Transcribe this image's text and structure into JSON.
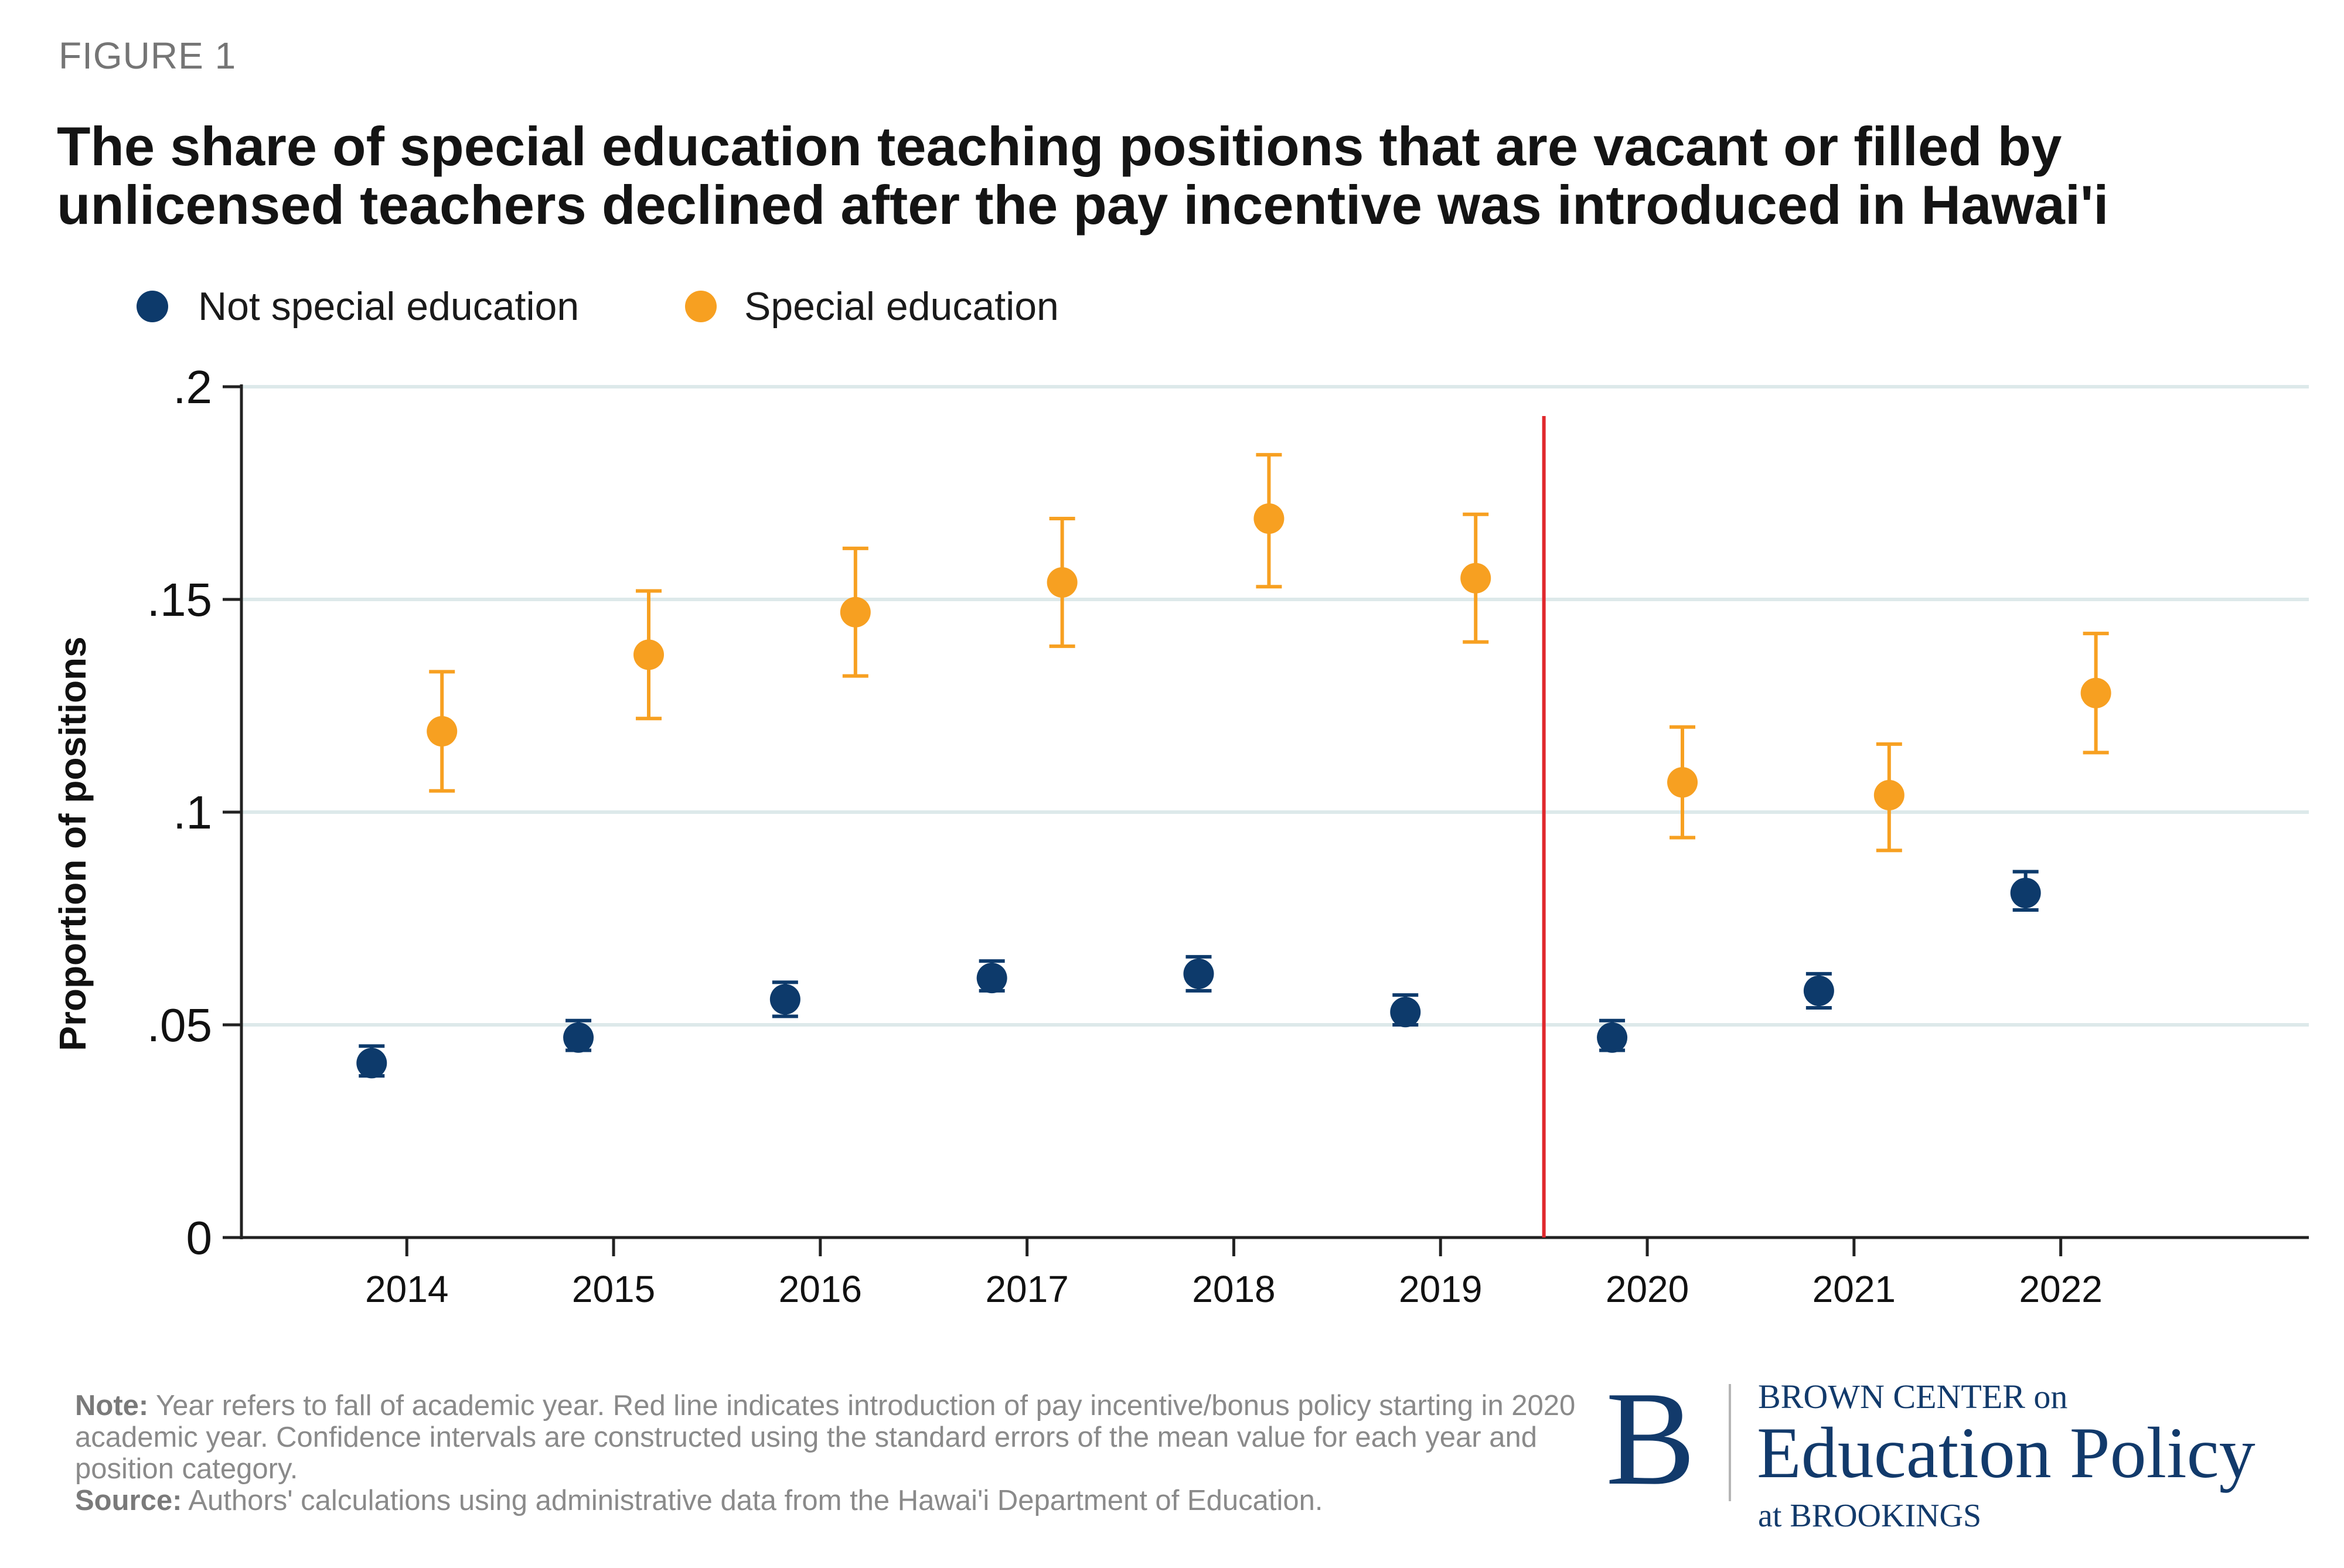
{
  "figure_label": "FIGURE 1",
  "title_lines": [
    "The share of special education teaching positions that are vacant or filled by",
    "unlicensed teachers declined after the pay incentive was introduced in Hawai'i"
  ],
  "note": {
    "note_label": "Note:",
    "note_text": " Year refers to fall of academic year. Red line indicates introduction of pay incentive/bonus policy starting in 2020 academic year. Confidence intervals are constructed using the standard errors of the mean value for each year and position category.",
    "source_label": "Source:",
    "source_text": " Authors' calculations using administrative data from the Hawai'i Department of Education."
  },
  "logo": {
    "letter": "B",
    "line1": "BROWN CENTER on",
    "line2": "Education Policy",
    "line3": "at BROOKINGS"
  },
  "chart_data": {
    "type": "scatter",
    "x": [
      2014,
      2015,
      2016,
      2017,
      2018,
      2019,
      2020,
      2021,
      2022
    ],
    "ylabel": "Proportion of positions",
    "xlabel": "",
    "ylim": [
      0,
      0.2
    ],
    "yticks": [
      0,
      0.05,
      0.1,
      0.15,
      0.2
    ],
    "ytick_labels": [
      "0",
      ".05",
      ".1",
      ".15",
      ".2"
    ],
    "xtick_labels": [
      "2014",
      "2015",
      "2016",
      "2017",
      "2018",
      "2019",
      "2020",
      "2021",
      "2022"
    ],
    "grid": "horizontal",
    "legend_position": "top-left",
    "policy_line_x": 2019.5,
    "policy_line_color": "#e0282d",
    "series": [
      {
        "name": "Not special education",
        "color": "#0d3a6b",
        "offset": -0.17,
        "values": [
          0.041,
          0.047,
          0.056,
          0.061,
          0.062,
          0.053,
          0.047,
          0.058,
          0.081
        ],
        "lower": [
          0.038,
          0.044,
          0.052,
          0.058,
          0.058,
          0.05,
          0.044,
          0.054,
          0.077
        ],
        "upper": [
          0.045,
          0.051,
          0.06,
          0.065,
          0.066,
          0.057,
          0.051,
          0.062,
          0.086
        ]
      },
      {
        "name": "Special education",
        "color": "#f7a021",
        "offset": 0.17,
        "values": [
          0.119,
          0.137,
          0.147,
          0.154,
          0.169,
          0.155,
          0.107,
          0.104,
          0.128
        ],
        "lower": [
          0.105,
          0.122,
          0.132,
          0.139,
          0.153,
          0.14,
          0.094,
          0.091,
          0.114
        ],
        "upper": [
          0.133,
          0.152,
          0.162,
          0.169,
          0.184,
          0.17,
          0.12,
          0.116,
          0.142
        ]
      }
    ]
  }
}
